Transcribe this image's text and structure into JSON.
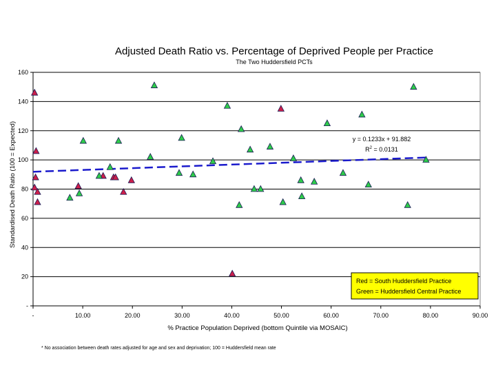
{
  "chart_data": {
    "type": "scatter",
    "title": "Adjusted Death Ratio vs. Percentage of Deprived People per Practice",
    "subtitle": "The Two Huddersfield PCTs",
    "xlabel": "% Practice Population Deprived (bottom Quintile via MOSAIC)",
    "ylabel": "Standardised Death Ratio (100 = Expected)",
    "xlim": [
      0,
      90
    ],
    "ylim": [
      0,
      160
    ],
    "x_ticks": [
      0,
      10,
      20,
      30,
      40,
      50,
      60,
      70,
      80,
      90
    ],
    "x_tick_labels": [
      "-",
      "10.00",
      "20.00",
      "30.00",
      "40.00",
      "50.00",
      "60.00",
      "70.00",
      "80.00",
      "90.00"
    ],
    "y_ticks": [
      0,
      20,
      40,
      60,
      80,
      100,
      120,
      140,
      160
    ],
    "y_tick_labels": [
      "-",
      "20",
      "40",
      "60",
      "80",
      "100",
      "120",
      "140",
      "160"
    ],
    "grid": "horizontal",
    "marker": "triangle",
    "series": [
      {
        "name": "South Huddersfield Practice",
        "color": "#cc1f4a",
        "points": [
          [
            0.3,
            146
          ],
          [
            0.6,
            106
          ],
          [
            0.5,
            88
          ],
          [
            0.3,
            81
          ],
          [
            0.9,
            78
          ],
          [
            0.9,
            71
          ],
          [
            9.1,
            82
          ],
          [
            14.1,
            89
          ],
          [
            16.2,
            88
          ],
          [
            16.6,
            88
          ],
          [
            18.2,
            78
          ],
          [
            19.8,
            86
          ],
          [
            49.9,
            135
          ],
          [
            40.1,
            22
          ]
        ]
      },
      {
        "name": "Huddersfield Central Practice",
        "color": "#2ecc4a",
        "points": [
          [
            24.4,
            151
          ],
          [
            39.1,
            137
          ],
          [
            41.9,
            121
          ],
          [
            43.7,
            107
          ],
          [
            47.7,
            109
          ],
          [
            59.2,
            125
          ],
          [
            66.2,
            131
          ],
          [
            76.6,
            150
          ],
          [
            10.1,
            113
          ],
          [
            17.2,
            113
          ],
          [
            29.9,
            115
          ],
          [
            23.6,
            102
          ],
          [
            36.2,
            99
          ],
          [
            52.4,
            101
          ],
          [
            79.1,
            100
          ],
          [
            15.5,
            95
          ],
          [
            29.4,
            91
          ],
          [
            32.2,
            90
          ],
          [
            13.3,
            89
          ],
          [
            9.3,
            77
          ],
          [
            7.4,
            74
          ],
          [
            44.5,
            80
          ],
          [
            45.8,
            80
          ],
          [
            53.9,
            86
          ],
          [
            56.6,
            85
          ],
          [
            62.4,
            91
          ],
          [
            67.5,
            83
          ],
          [
            54.1,
            75
          ],
          [
            41.5,
            69
          ],
          [
            50.3,
            71
          ],
          [
            75.4,
            69
          ]
        ]
      }
    ],
    "trendline": {
      "type": "linear",
      "slope": 0.1233,
      "intercept": 91.882,
      "x_range": [
        0,
        79
      ],
      "color": "#1a1acc",
      "style": "dashed",
      "equation_label": "y = 0.1233x + 91.882",
      "r2_label_prefix": "R",
      "r2_label_sup": "2",
      "r2_label_suffix": " = 0.0131"
    },
    "legend": {
      "placement": "bottom-right",
      "background": "#ffff00",
      "lines": [
        "Red = South Huddersfield Practice",
        "Green = Huddersfield Central Practice"
      ]
    },
    "footnote": "* No association between death rates adjusted for age and sex and deprivation; 100 = Huddersfield mean rate"
  }
}
